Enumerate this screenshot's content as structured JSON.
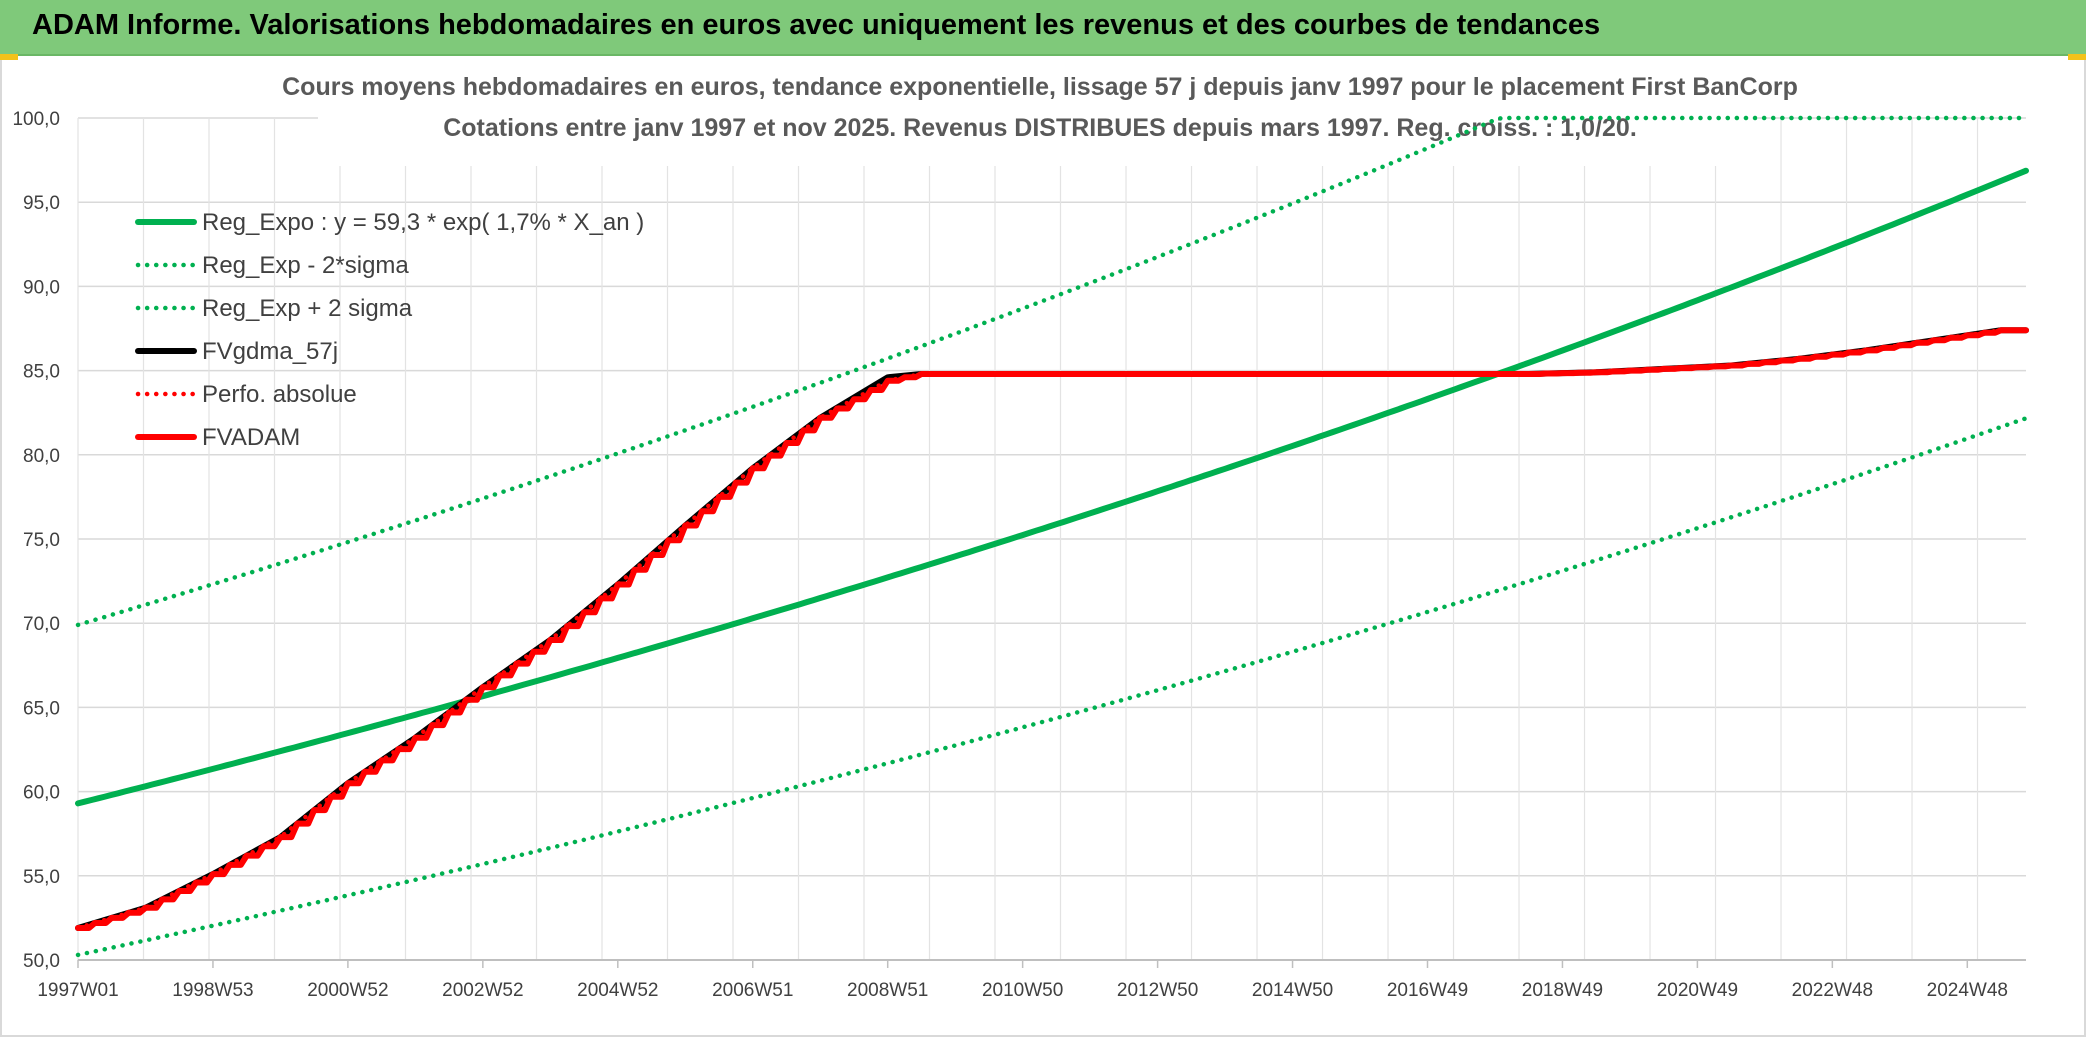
{
  "header": {
    "title": "ADAM Informe. Valorisations hebdomadaires en euros avec uniquement les revenus et des courbes de tendances"
  },
  "chart_data": {
    "type": "line",
    "title": "Cours moyens hebdomadaires en euros, tendance exponentielle, lissage 57 j depuis janv 1997 pour le placement First BanCorp",
    "subtitle": "Cotations entre janv 1997 et nov 2025. Revenus DISTRIBUES depuis mars 1997. Reg. croiss. : 1,0/20.",
    "ylim": [
      50,
      100
    ],
    "y_ticks": [
      "50,0",
      "55,0",
      "60,0",
      "65,0",
      "70,0",
      "75,0",
      "80,0",
      "85,0",
      "90,0",
      "95,0",
      "100,0"
    ],
    "xlim_years": [
      1997.0,
      2025.87
    ],
    "x_tick_labels": [
      "1997W01",
      "1998W53",
      "2000W52",
      "2002W52",
      "2004W52",
      "2006W51",
      "2008W51",
      "2010W50",
      "2012W50",
      "2014W50",
      "2016W49",
      "2018W49",
      "2020W49",
      "2022W48",
      "2024W48"
    ],
    "grid": true,
    "legend_position": "top-left",
    "series": [
      {
        "name": "Reg_Expo : y = 59,3 * exp( 1,7% *  X_an )",
        "color": "#00b050",
        "style": "solid",
        "model": {
          "a": 59.3,
          "rate": 0.017
        }
      },
      {
        "name": "Reg_Exp - 2*sigma",
        "color": "#00b050",
        "style": "dotted",
        "model": {
          "a": 50.3,
          "rate": 0.017
        }
      },
      {
        "name": "Reg_Exp + 2 sigma",
        "color": "#00b050",
        "style": "dotted",
        "model": {
          "a": 69.9,
          "rate": 0.017
        }
      },
      {
        "name": "FVgdma_57j",
        "color": "#000000",
        "style": "solid",
        "points": [
          [
            1997.0,
            51.9
          ],
          [
            1998.0,
            53.1
          ],
          [
            1999.0,
            55.1
          ],
          [
            2000.0,
            57.3
          ],
          [
            2001.0,
            60.5
          ],
          [
            2002.0,
            63.2
          ],
          [
            2003.0,
            66.2
          ],
          [
            2004.0,
            69.0
          ],
          [
            2005.0,
            72.3
          ],
          [
            2006.0,
            75.8
          ],
          [
            2007.0,
            79.2
          ],
          [
            2008.0,
            82.2
          ],
          [
            2009.0,
            84.6
          ],
          [
            2009.5,
            84.8
          ],
          [
            2018.5,
            84.8
          ],
          [
            2019.5,
            84.9
          ],
          [
            2020.5,
            85.1
          ],
          [
            2021.5,
            85.3
          ],
          [
            2022.5,
            85.7
          ],
          [
            2023.5,
            86.2
          ],
          [
            2024.5,
            86.8
          ],
          [
            2025.5,
            87.4
          ],
          [
            2025.87,
            87.4
          ]
        ]
      },
      {
        "name": "Perfo. absolue",
        "color": "#ff0000",
        "style": "dotted",
        "points": [
          [
            1997.0,
            51.9
          ],
          [
            1998.0,
            53.1
          ],
          [
            1999.0,
            55.1
          ],
          [
            2000.0,
            57.3
          ],
          [
            2001.0,
            60.5
          ],
          [
            2002.0,
            63.2
          ],
          [
            2003.0,
            66.2
          ],
          [
            2004.0,
            69.0
          ],
          [
            2005.0,
            72.3
          ],
          [
            2006.0,
            75.8
          ],
          [
            2007.0,
            79.2
          ],
          [
            2008.0,
            82.2
          ],
          [
            2009.0,
            84.4
          ],
          [
            2009.5,
            84.8
          ],
          [
            2018.5,
            84.8
          ],
          [
            2019.5,
            84.9
          ],
          [
            2020.5,
            85.1
          ],
          [
            2021.5,
            85.3
          ],
          [
            2022.5,
            85.7
          ],
          [
            2023.5,
            86.2
          ],
          [
            2024.5,
            86.8
          ],
          [
            2025.5,
            87.4
          ],
          [
            2025.87,
            87.4
          ]
        ]
      },
      {
        "name": "FVADAM",
        "color": "#ff0000",
        "style": "solid",
        "stepped": true,
        "points": [
          [
            1997.0,
            51.9
          ],
          [
            1998.0,
            53.1
          ],
          [
            1999.0,
            55.1
          ],
          [
            2000.0,
            57.3
          ],
          [
            2001.0,
            60.5
          ],
          [
            2002.0,
            63.2
          ],
          [
            2003.0,
            66.2
          ],
          [
            2004.0,
            69.0
          ],
          [
            2005.0,
            72.3
          ],
          [
            2006.0,
            75.8
          ],
          [
            2007.0,
            79.2
          ],
          [
            2008.0,
            82.2
          ],
          [
            2009.0,
            84.4
          ],
          [
            2009.5,
            84.8
          ],
          [
            2018.5,
            84.8
          ],
          [
            2019.5,
            84.9
          ],
          [
            2020.5,
            85.1
          ],
          [
            2021.5,
            85.3
          ],
          [
            2022.5,
            85.7
          ],
          [
            2023.5,
            86.2
          ],
          [
            2024.5,
            86.8
          ],
          [
            2025.5,
            87.4
          ],
          [
            2025.87,
            87.4
          ]
        ]
      }
    ]
  }
}
